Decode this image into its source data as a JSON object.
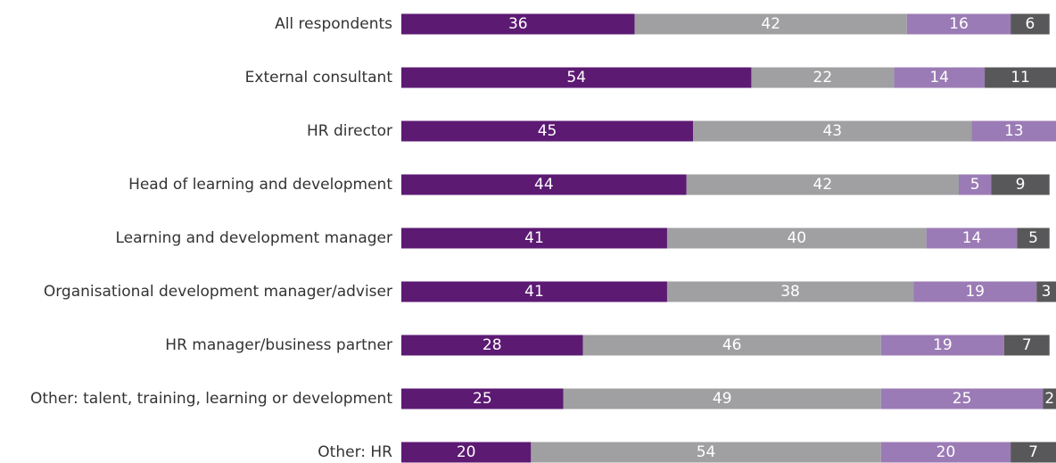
{
  "chart_data": {
    "type": "stacked-bar-horizontal",
    "categories": [
      "All respondents",
      "External consultant",
      "HR director",
      "Head of learning and development",
      "Learning and development manager",
      "Organisational development manager/adviser",
      "HR manager/business partner",
      "Other: talent, training, learning or development",
      "Other: HR"
    ],
    "series": [
      {
        "color": "#5c1a73",
        "values": [
          36,
          54,
          45,
          44,
          41,
          41,
          28,
          25,
          20
        ]
      },
      {
        "color": "#a0a0a3",
        "values": [
          42,
          22,
          43,
          42,
          40,
          38,
          46,
          49,
          54
        ]
      },
      {
        "color": "#9b7bb5",
        "values": [
          16,
          14,
          13,
          5,
          14,
          19,
          19,
          25,
          20
        ]
      },
      {
        "color": "#58585a",
        "values": [
          6,
          11,
          null,
          9,
          5,
          3,
          7,
          2,
          7
        ]
      }
    ],
    "xlim": [
      0,
      101
    ]
  }
}
